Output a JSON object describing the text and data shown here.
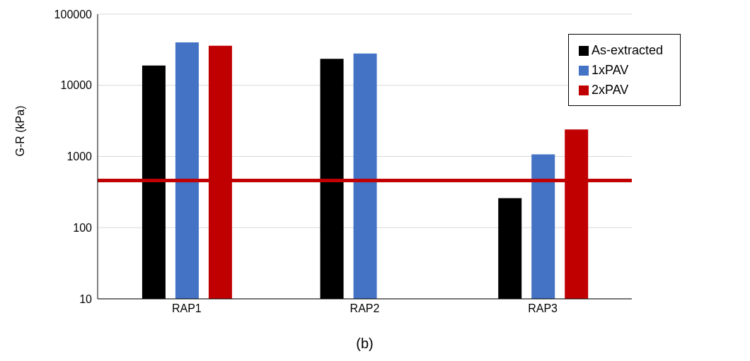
{
  "chart_data": {
    "type": "bar",
    "xlabel": "(b)",
    "ylabel": "G-R (kPa)",
    "categories": [
      "RAP1",
      "RAP2",
      "RAP3"
    ],
    "series": [
      {
        "name": "As-extracted",
        "color": "#000000",
        "values": [
          19000,
          23500,
          260
        ]
      },
      {
        "name": "1xPAV",
        "color": "#4472c4",
        "values": [
          40000,
          28000,
          1070
        ]
      },
      {
        "name": "2xPAV",
        "color": "#c00000",
        "values": [
          36000,
          null,
          2400
        ]
      }
    ],
    "log": "y",
    "ylim": [
      10,
      100000
    ],
    "yticks": [
      10,
      100,
      1000,
      10000,
      100000
    ],
    "grid": "y",
    "legend": "top right",
    "ref_lines": [
      {
        "axis": "y",
        "value": 460,
        "color": "#c00000"
      }
    ]
  }
}
